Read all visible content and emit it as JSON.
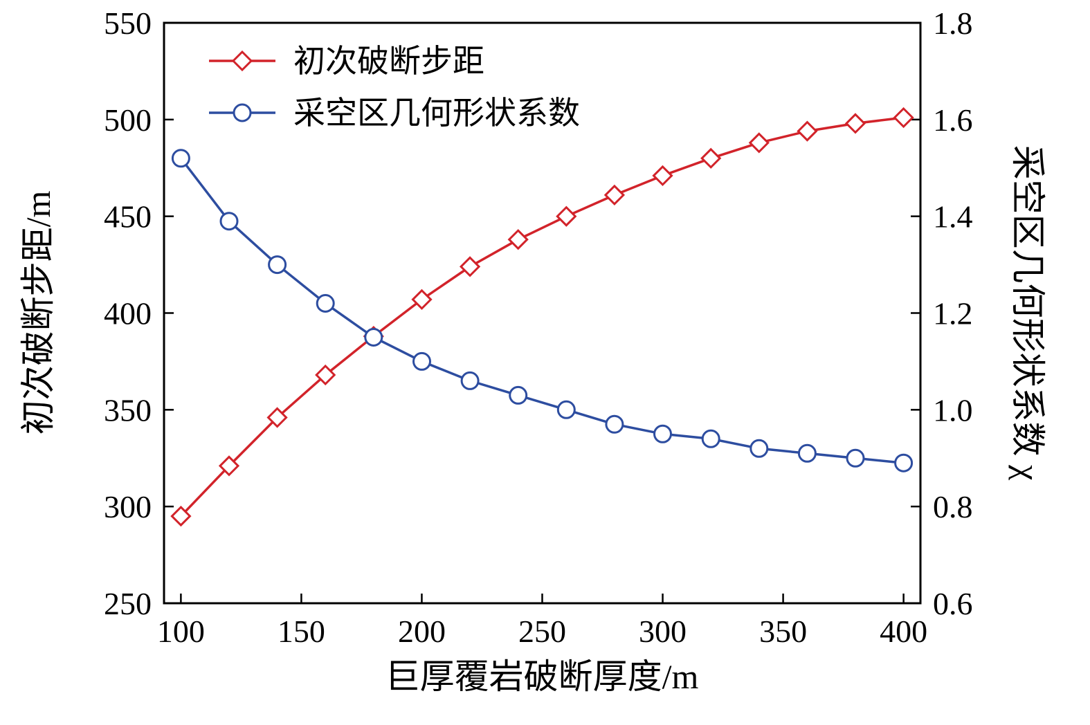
{
  "chart_data": {
    "type": "line",
    "title": "",
    "xlabel": "巨厚覆岩破断厚度/m",
    "ylabel_left": "初次破断步距/m",
    "ylabel_right": "采空区几何形状系数 χ",
    "grid": false,
    "legend_position": "top-left",
    "x": [
      100,
      120,
      140,
      160,
      180,
      200,
      220,
      240,
      260,
      280,
      300,
      320,
      340,
      360,
      380,
      400
    ],
    "x_ticks": [
      100,
      150,
      200,
      250,
      300,
      350,
      400
    ],
    "xlim": [
      93,
      407
    ],
    "left_ticks": [
      250,
      300,
      350,
      400,
      450,
      500,
      550
    ],
    "ylim_left": [
      250,
      550
    ],
    "right_ticks": [
      0.6,
      0.8,
      1.0,
      1.2,
      1.4,
      1.6,
      1.8
    ],
    "ylim_right": [
      0.6,
      1.8
    ],
    "series": [
      {
        "name": "初次破断步距",
        "axis": "left",
        "color": "#d2232a",
        "marker": "diamond",
        "values": [
          295,
          321,
          346,
          368,
          388,
          407,
          424,
          438,
          450,
          461,
          471,
          480,
          488,
          494,
          498,
          501
        ]
      },
      {
        "name": "采空区几何形状系数",
        "axis": "right",
        "color": "#2d4da0",
        "marker": "circle",
        "values": [
          1.52,
          1.39,
          1.3,
          1.22,
          1.15,
          1.1,
          1.06,
          1.03,
          1.0,
          0.97,
          0.95,
          0.94,
          0.92,
          0.91,
          0.9,
          0.89
        ]
      }
    ],
    "colors": {
      "axis": "#000000",
      "background": "#ffffff"
    }
  }
}
